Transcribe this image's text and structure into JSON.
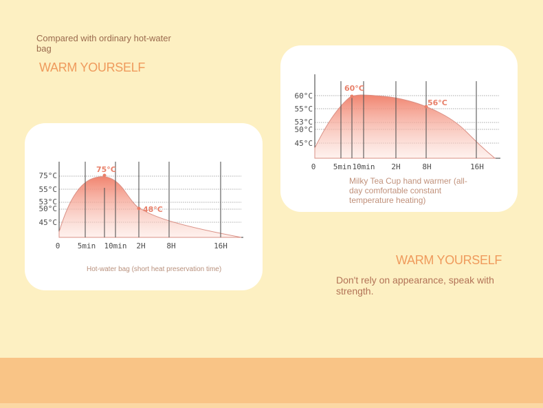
{
  "intro": "Compared with ordinary hot-water bag",
  "heading_left": "WARM YOURSELF",
  "heading_right": "WARM YOURSELF",
  "tagline": "Don't rely on appearance, speak with strength.",
  "colors": {
    "accent": "#ef9a5c",
    "fill": "#f08b76",
    "callout": "#e8806a",
    "line": "#d98f84"
  },
  "chart_data": [
    {
      "type": "area",
      "title": "",
      "caption": "Hot-water bag (short heat preservation time)",
      "x_ticks": [
        "0",
        "5min",
        "10min",
        "2H",
        "8H",
        "16H"
      ],
      "y_ticks": [
        "75°C",
        "55°C",
        "53°C",
        "50°C",
        "45°C"
      ],
      "callouts": [
        {
          "label": "75°C",
          "x": "10min",
          "y": 75
        },
        {
          "label": "48°C",
          "x": "2H",
          "y": 48
        }
      ]
    },
    {
      "type": "area",
      "title": "",
      "caption": "Milky Tea Cup hand warmer (all-day comfortable constant temperature heating)",
      "x_ticks": [
        "0",
        "5min",
        "10min",
        "2H",
        "8H",
        "16H"
      ],
      "y_ticks": [
        "60°C",
        "55°C",
        "53°C",
        "50°C",
        "45°C"
      ],
      "callouts": [
        {
          "label": "60°C",
          "x": "5min",
          "y": 60
        },
        {
          "label": "56°C",
          "x": "8H",
          "y": 56
        }
      ]
    }
  ]
}
